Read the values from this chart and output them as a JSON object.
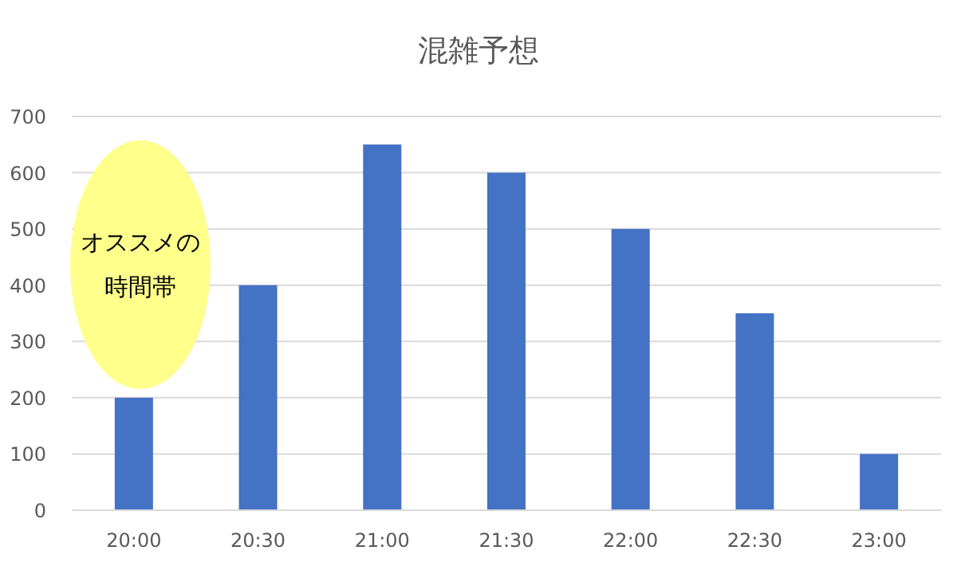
{
  "chart_data": {
    "type": "bar",
    "title": "混雑予想",
    "categories": [
      "20:00",
      "20:30",
      "21:00",
      "21:30",
      "22:00",
      "22:30",
      "23:00"
    ],
    "values": [
      200,
      400,
      650,
      600,
      500,
      350,
      100
    ],
    "color": "#4472c4",
    "ylim": [
      0,
      700
    ],
    "yticks": [
      0,
      100,
      200,
      300,
      400,
      500,
      600,
      700
    ],
    "grid": "y",
    "annotations": [
      "オススメの時間帯"
    ]
  }
}
